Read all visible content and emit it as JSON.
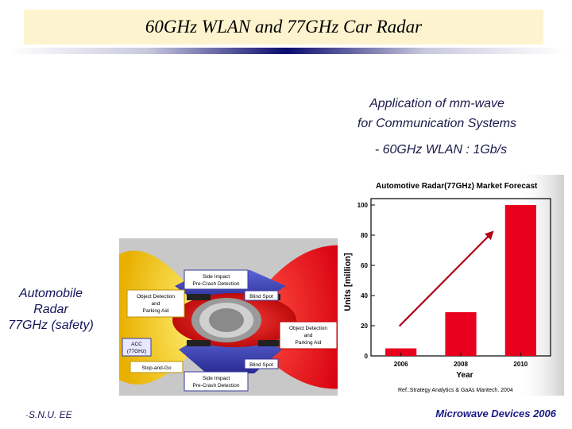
{
  "title": "60GHz WLAN and 77GHz Car Radar",
  "application": {
    "line1": "Application of mm-wave",
    "line2": "for Communication Systems"
  },
  "wlan": "- 60GHz WLAN : 1Gb/s",
  "radar_label": {
    "line1": "Automobile",
    "line2": "Radar",
    "line3": "77GHz (safety)"
  },
  "car_figure": {
    "side_impact_top": [
      "Side Impact",
      "Pre-Crash Detection"
    ],
    "object_detection_left": [
      "Object Detection",
      "and",
      "Parking Aid"
    ],
    "blind_spot_top": "Blind Spot",
    "object_detection_right": [
      "Object Detection",
      "and",
      "Parking Aid"
    ],
    "acc": [
      "ACC",
      "(77GHz)"
    ],
    "stop_and_go": "Stop-and-Go",
    "blind_spot_bottom": "Blind Spot",
    "side_impact_bottom": [
      "Side Impact",
      "Pre-Crash Detection"
    ]
  },
  "chart_data": {
    "type": "bar",
    "title": "Automotive Radar(77GHz) Market Forecast",
    "xlabel": "Year",
    "ylabel": "Units [million]",
    "categories": [
      "2006",
      "2008",
      "2010"
    ],
    "values": [
      5,
      29,
      100
    ],
    "ylim": [
      0,
      100
    ],
    "yticks": [
      "0",
      "20",
      "40",
      "60",
      "80",
      "100"
    ],
    "source": "Ref.:Strategy Analytics & GaAs Mantech. 2004",
    "bar_color": "#e8001c"
  },
  "footer": {
    "left": "·S.N.U. EE",
    "right": "Microwave Devices 2006"
  }
}
